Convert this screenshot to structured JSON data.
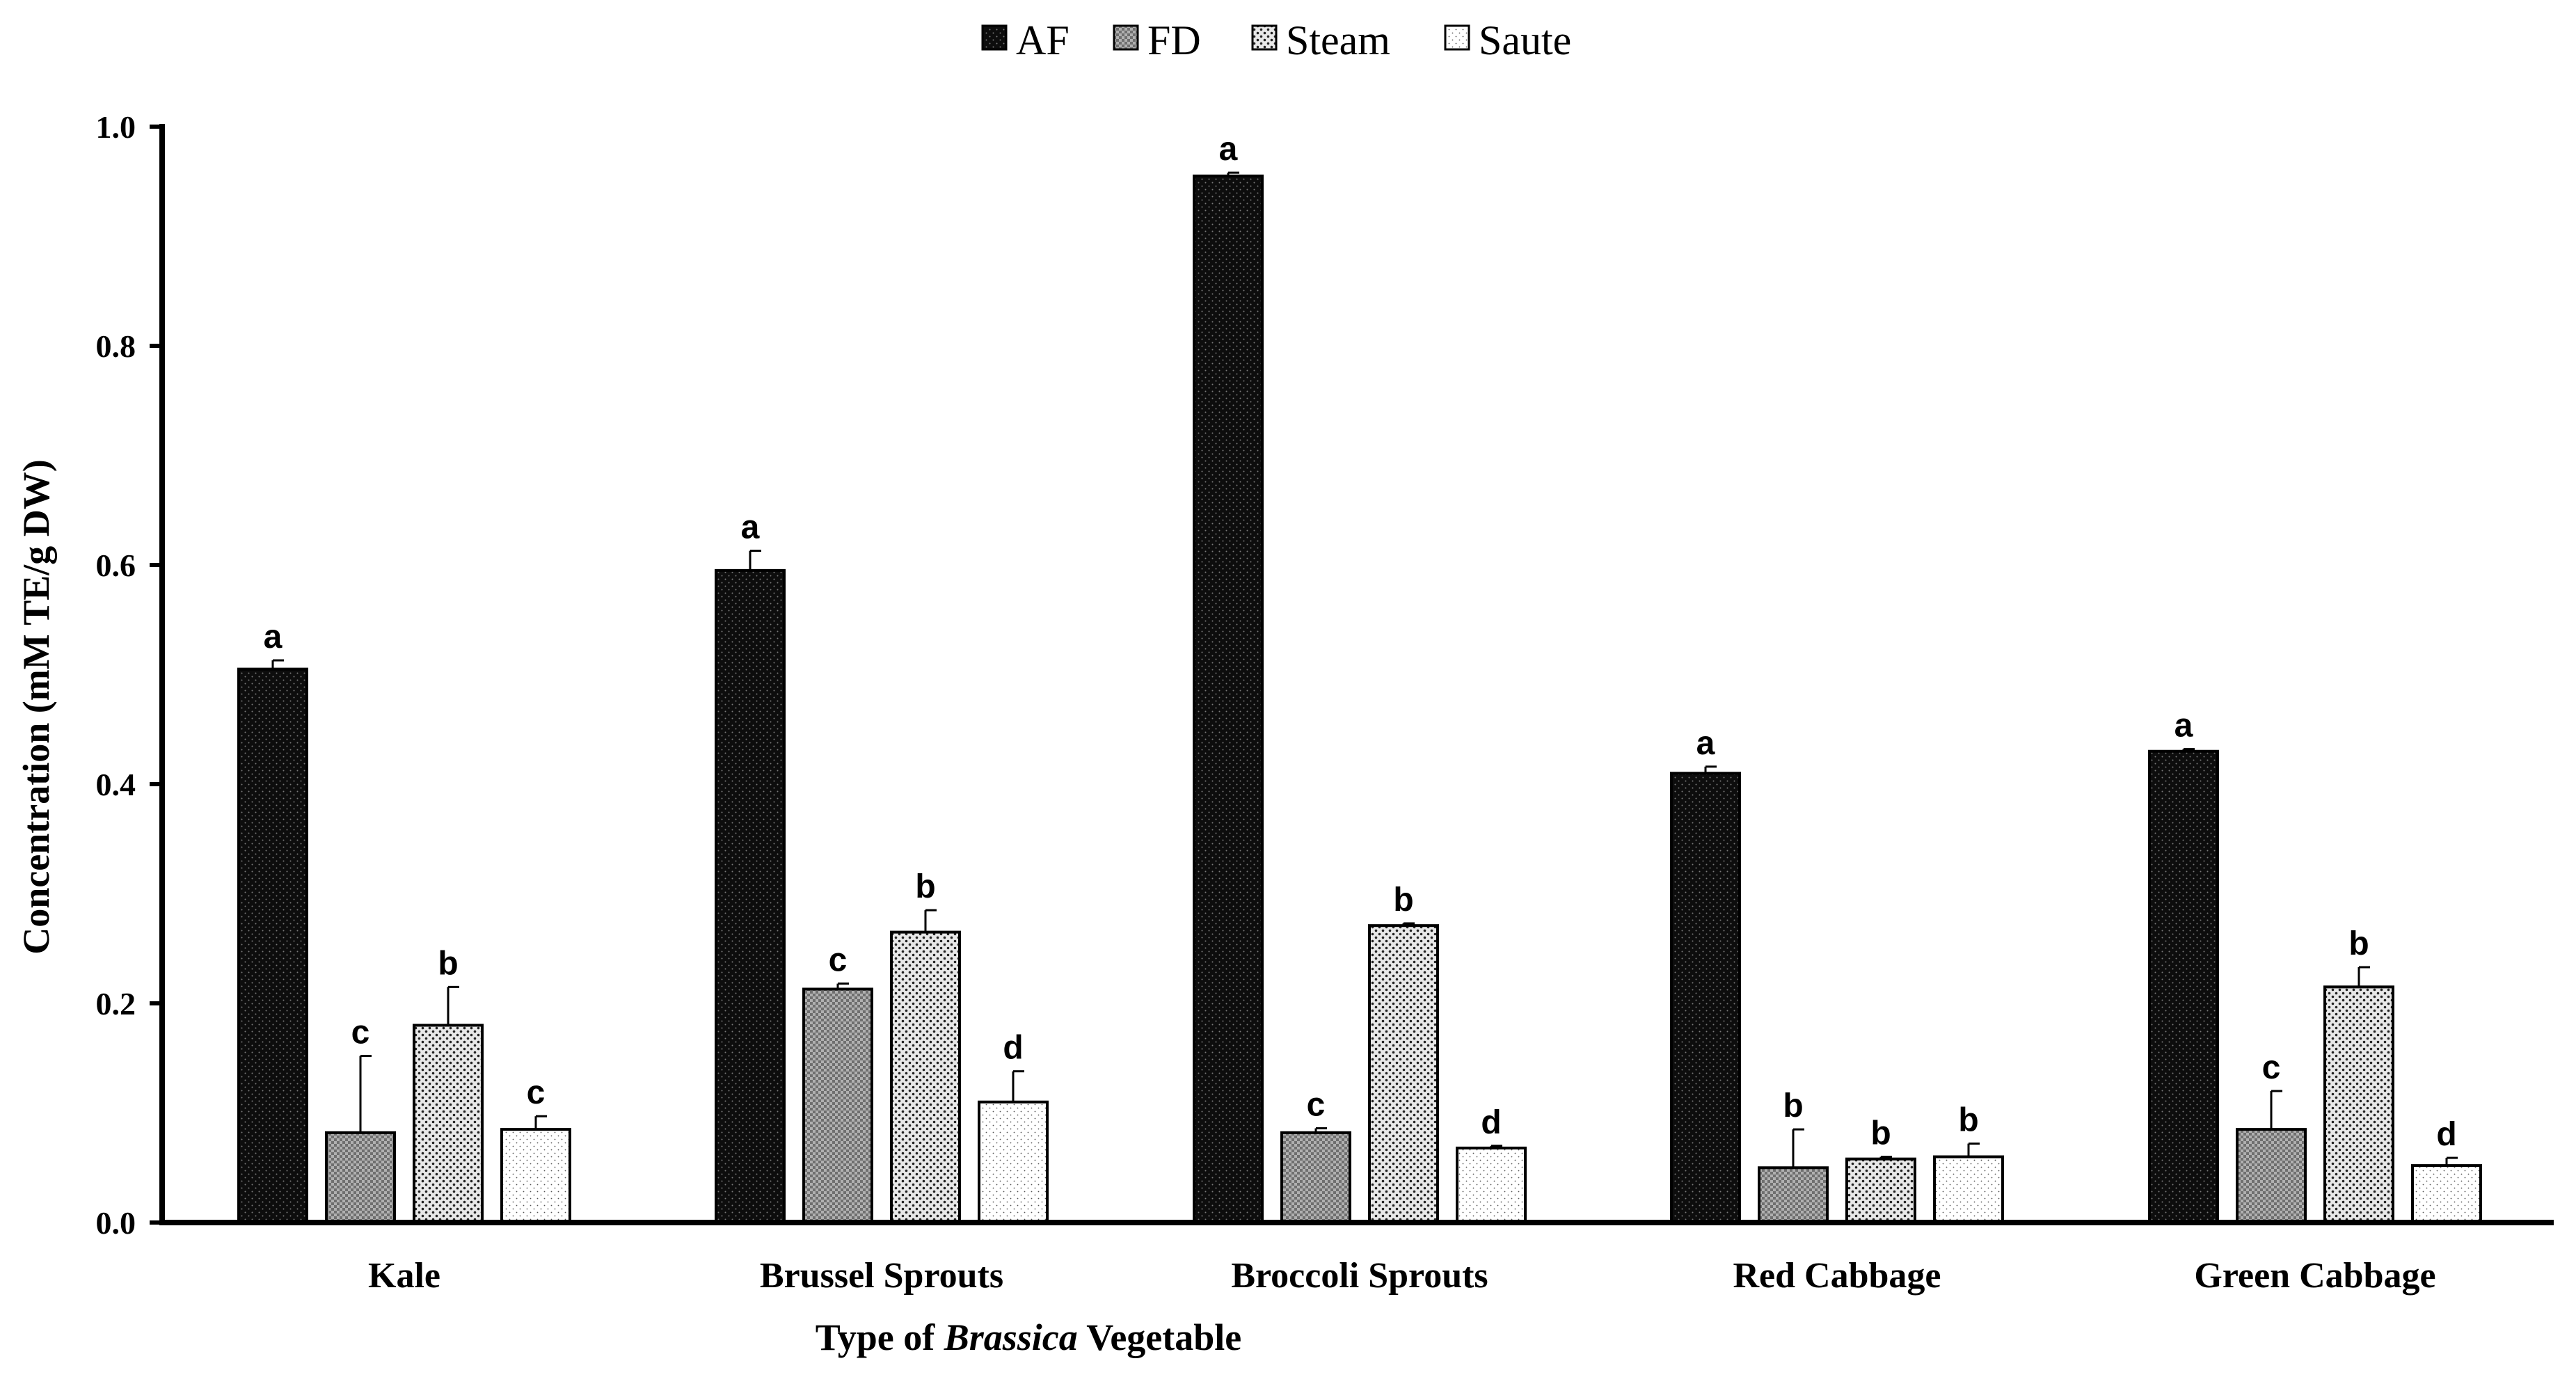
{
  "chart_data": {
    "type": "bar",
    "title": "",
    "categories": [
      "Kale",
      "Brussel Sprouts",
      "Broccoli Sprouts",
      "Red Cabbage",
      "Green Cabbage"
    ],
    "series": [
      {
        "name": "AF",
        "values": [
          0.505,
          0.595,
          0.955,
          0.41,
          0.43
        ],
        "errors": [
          0.008,
          0.018,
          0.003,
          0.006,
          0.002
        ],
        "letters": [
          "a",
          "a",
          "a",
          "a",
          "a"
        ]
      },
      {
        "name": "FD",
        "values": [
          0.082,
          0.213,
          0.082,
          0.05,
          0.085
        ],
        "errors": [
          0.07,
          0.005,
          0.004,
          0.035,
          0.035
        ],
        "letters": [
          "c",
          "c",
          "c",
          "b",
          "c"
        ]
      },
      {
        "name": "Steam",
        "values": [
          0.18,
          0.265,
          0.271,
          0.058,
          0.215
        ],
        "errors": [
          0.035,
          0.02,
          0.002,
          0.002,
          0.018
        ],
        "letters": [
          "b",
          "b",
          "b",
          "b",
          "b"
        ]
      },
      {
        "name": "Saute",
        "values": [
          0.085,
          0.11,
          0.068,
          0.06,
          0.052
        ],
        "errors": [
          0.012,
          0.028,
          0.002,
          0.012,
          0.007
        ],
        "letters": [
          "c",
          "d",
          "d",
          "b",
          "d"
        ]
      }
    ],
    "xlabel_parts": [
      "Type of ",
      "Brassica",
      " Vegetable"
    ],
    "ylabel": "Concentration (mM TE/g DW)",
    "ylim": [
      0,
      1.0
    ],
    "yticks": [
      "0.0",
      "0.2",
      "0.4",
      "0.6",
      "0.8",
      "1.0"
    ],
    "grid": false,
    "legend_position": "top-center"
  },
  "colors": {
    "AF": "#111111",
    "FD": "#8f8f8f",
    "Steam": "#c4c4c4",
    "Saute": "#f4f4f4"
  }
}
